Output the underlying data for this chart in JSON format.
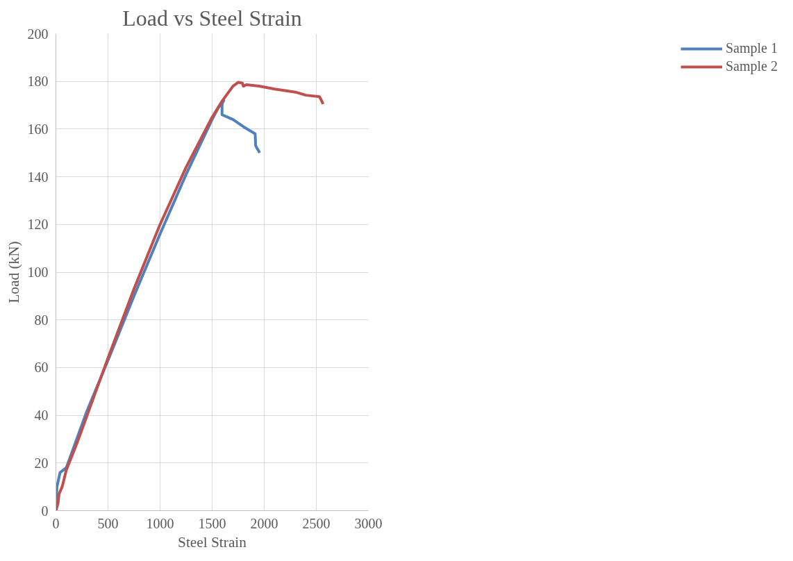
{
  "chart_data": {
    "type": "line",
    "title": "Load vs Steel Strain",
    "xlabel": "Steel Strain",
    "ylabel": "Load (kN)",
    "xlim": [
      0,
      3000
    ],
    "xticks": [
      0,
      500,
      1000,
      1500,
      2000,
      2500,
      3000
    ],
    "ylim": [
      0,
      200
    ],
    "yticks": [
      0,
      20,
      40,
      60,
      80,
      100,
      120,
      140,
      160,
      180,
      200
    ],
    "grid": true,
    "legend": "right",
    "marker": "none",
    "line_style": "solid",
    "series": [
      {
        "name": "Sample 1",
        "color": "#4f81bd",
        "x": [
          0,
          5,
          10,
          20,
          40,
          100,
          200,
          300,
          500,
          750,
          1000,
          1250,
          1500,
          1560,
          1612,
          1600,
          1595,
          1595,
          1700,
          1800,
          1913,
          1918,
          1930,
          1945,
          1955
        ],
        "values": [
          0,
          5,
          10,
          12,
          16,
          18,
          30,
          42,
          63,
          90,
          116,
          141,
          164,
          169,
          172,
          171,
          170,
          166,
          164,
          161,
          158,
          153,
          152,
          151,
          150
        ]
      },
      {
        "name": "Sample 2",
        "color": "#c0504d",
        "x": [
          0,
          20,
          30,
          60,
          100,
          200,
          300,
          500,
          750,
          1000,
          1250,
          1500,
          1600,
          1650,
          1700,
          1750,
          1790,
          1800,
          1830,
          1950,
          2100,
          2300,
          2400,
          2530,
          2550,
          2565
        ],
        "values": [
          0,
          3,
          7,
          10,
          17,
          28,
          40,
          64,
          93,
          120,
          144,
          165,
          172,
          175,
          178,
          179.6,
          179.3,
          178,
          178.6,
          178,
          176.8,
          175.5,
          174.2,
          173.6,
          172,
          170.5
        ]
      }
    ]
  }
}
